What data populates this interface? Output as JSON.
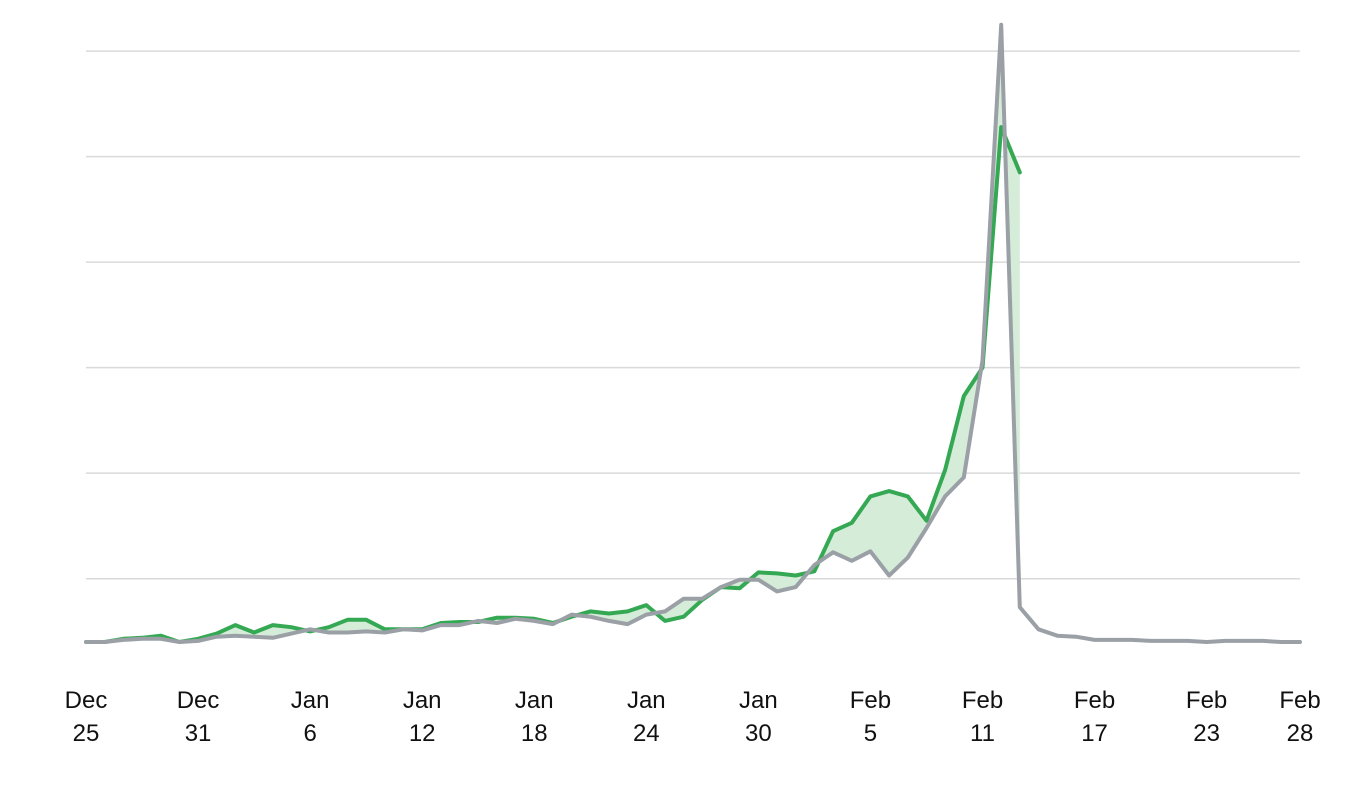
{
  "colors": {
    "background": "#ffffff",
    "grid": "#dadada",
    "series_a": "#34a853",
    "series_a_fill": "#d4ecd8",
    "series_b": "#9aa0a6"
  },
  "chart_data": {
    "type": "line",
    "title": "",
    "xlabel": "",
    "ylabel": "",
    "grid": "horizontal",
    "legend": "none",
    "y_tick_labels_shown": false,
    "xlim": [
      "2021-12-25",
      "2022-02-28"
    ],
    "ylim": [
      0,
      5.8
    ],
    "x_ticks": [
      {
        "date": "2021-12-25",
        "month": "Dec",
        "day": "25"
      },
      {
        "date": "2021-12-31",
        "month": "Dec",
        "day": "31"
      },
      {
        "date": "2022-01-06",
        "month": "Jan",
        "day": "6"
      },
      {
        "date": "2022-01-12",
        "month": "Jan",
        "day": "12"
      },
      {
        "date": "2022-01-18",
        "month": "Jan",
        "day": "18"
      },
      {
        "date": "2022-01-24",
        "month": "Jan",
        "day": "24"
      },
      {
        "date": "2022-01-30",
        "month": "Jan",
        "day": "30"
      },
      {
        "date": "2022-02-05",
        "month": "Feb",
        "day": "5"
      },
      {
        "date": "2022-02-11",
        "month": "Feb",
        "day": "11"
      },
      {
        "date": "2022-02-17",
        "month": "Feb",
        "day": "17"
      },
      {
        "date": "2022-02-23",
        "month": "Feb",
        "day": "23"
      },
      {
        "date": "2022-02-28",
        "month": "Feb",
        "day": "28"
      }
    ],
    "y_gridlines": [
      0.6,
      1.6,
      2.6,
      3.6,
      4.6,
      5.6
    ],
    "series": [
      {
        "color": "#34a853",
        "x": [
          "2021-12-25",
          "2021-12-26",
          "2021-12-27",
          "2021-12-28",
          "2021-12-29",
          "2021-12-30",
          "2021-12-31",
          "2022-01-01",
          "2022-01-02",
          "2022-01-03",
          "2022-01-04",
          "2022-01-05",
          "2022-01-06",
          "2022-01-07",
          "2022-01-08",
          "2022-01-09",
          "2022-01-10",
          "2022-01-11",
          "2022-01-12",
          "2022-01-13",
          "2022-01-14",
          "2022-01-15",
          "2022-01-16",
          "2022-01-17",
          "2022-01-18",
          "2022-01-19",
          "2022-01-20",
          "2022-01-21",
          "2022-01-22",
          "2022-01-23",
          "2022-01-24",
          "2022-01-25",
          "2022-01-26",
          "2022-01-27",
          "2022-01-28",
          "2022-01-29",
          "2022-01-30",
          "2022-01-31",
          "2022-02-01",
          "2022-02-02",
          "2022-02-03",
          "2022-02-04",
          "2022-02-05",
          "2022-02-06",
          "2022-02-07",
          "2022-02-08",
          "2022-02-09",
          "2022-02-10",
          "2022-02-11",
          "2022-02-12",
          "2022-02-13",
          "2022-02-14"
        ],
        "y": [
          0.0,
          0.0,
          0.03,
          0.04,
          0.06,
          0.0,
          0.03,
          0.08,
          0.16,
          0.09,
          0.16,
          0.14,
          0.1,
          0.14,
          0.21,
          0.21,
          0.12,
          0.12,
          0.12,
          0.18,
          0.19,
          0.19,
          0.23,
          0.23,
          0.22,
          0.18,
          0.24,
          0.29,
          0.27,
          0.29,
          0.35,
          0.2,
          0.24,
          0.4,
          0.52,
          0.51,
          0.66,
          0.65,
          0.63,
          0.67,
          1.05,
          1.13,
          1.38,
          1.43,
          1.38,
          1.15,
          1.63,
          2.33,
          2.6,
          4.88,
          4.45,
          null
        ]
      },
      {
        "color": "#9aa0a6",
        "x": [
          "2021-12-25",
          "2021-12-26",
          "2021-12-27",
          "2021-12-28",
          "2021-12-29",
          "2021-12-30",
          "2021-12-31",
          "2022-01-01",
          "2022-01-02",
          "2022-01-03",
          "2022-01-04",
          "2022-01-05",
          "2022-01-06",
          "2022-01-07",
          "2022-01-08",
          "2022-01-09",
          "2022-01-10",
          "2022-01-11",
          "2022-01-12",
          "2022-01-13",
          "2022-01-14",
          "2022-01-15",
          "2022-01-16",
          "2022-01-17",
          "2022-01-18",
          "2022-01-19",
          "2022-01-20",
          "2022-01-21",
          "2022-01-22",
          "2022-01-23",
          "2022-01-24",
          "2022-01-25",
          "2022-01-26",
          "2022-01-27",
          "2022-01-28",
          "2022-01-29",
          "2022-01-30",
          "2022-01-31",
          "2022-02-01",
          "2022-02-02",
          "2022-02-03",
          "2022-02-04",
          "2022-02-05",
          "2022-02-06",
          "2022-02-07",
          "2022-02-08",
          "2022-02-09",
          "2022-02-10",
          "2022-02-11",
          "2022-02-12",
          "2022-02-13",
          "2022-02-14",
          "2022-02-15",
          "2022-02-16",
          "2022-02-17",
          "2022-02-18",
          "2022-02-19",
          "2022-02-20",
          "2022-02-21",
          "2022-02-22",
          "2022-02-23",
          "2022-02-24",
          "2022-02-25",
          "2022-02-26",
          "2022-02-27",
          "2022-02-28"
        ],
        "y": [
          0.0,
          0.0,
          0.02,
          0.03,
          0.03,
          0.0,
          0.01,
          0.05,
          0.06,
          0.05,
          0.04,
          0.08,
          0.12,
          0.09,
          0.09,
          0.1,
          0.09,
          0.12,
          0.11,
          0.16,
          0.16,
          0.2,
          0.18,
          0.22,
          0.2,
          0.17,
          0.26,
          0.24,
          0.2,
          0.17,
          0.26,
          0.29,
          0.41,
          0.41,
          0.52,
          0.59,
          0.59,
          0.48,
          0.52,
          0.73,
          0.85,
          0.77,
          0.86,
          0.63,
          0.8,
          1.08,
          1.38,
          1.56,
          2.67,
          5.85,
          0.33,
          0.12,
          0.06,
          0.05,
          0.02,
          0.02,
          0.02,
          0.01,
          0.01,
          0.01,
          0.0,
          0.01,
          0.01,
          0.01,
          0.0,
          0.0
        ]
      }
    ]
  }
}
